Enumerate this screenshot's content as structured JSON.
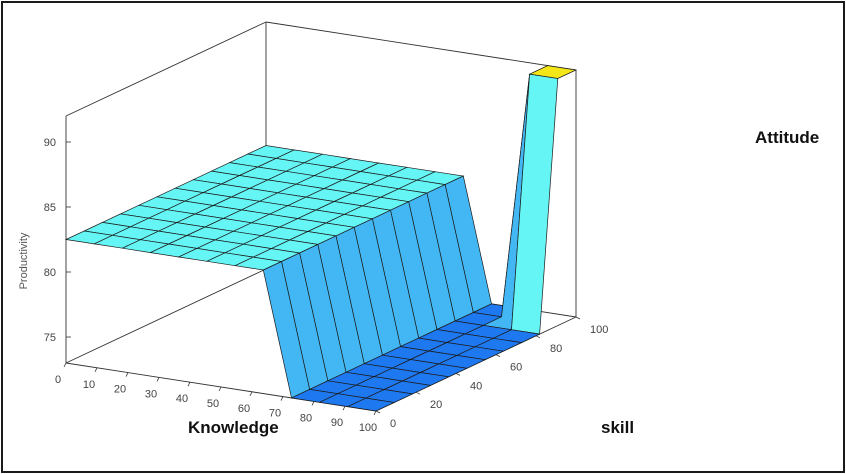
{
  "chart_data": {
    "type": "surface",
    "x_axis": {
      "label": "Knowledge",
      "range": [
        0,
        100
      ],
      "ticks": [
        0,
        10,
        20,
        30,
        40,
        50,
        60,
        70,
        80,
        90,
        100
      ]
    },
    "y_axis": {
      "label": "skill",
      "range": [
        0,
        100
      ],
      "ticks": [
        0,
        20,
        40,
        60,
        80,
        100
      ]
    },
    "z_axis": {
      "label": "Productivity",
      "range": [
        73,
        92
      ],
      "ticks": [
        75,
        80,
        85,
        90
      ]
    },
    "annotation": "Attitude",
    "grid": "off",
    "surface_description_levels": {
      "knowledge_le_70": 82.5,
      "knowledge_ge_80_skill_lt_80": 73,
      "knowledge_ge_80_skill_ge_90": 92
    },
    "colormap": {
      "low": "#1e78f0",
      "mid": "#66f5f5",
      "high": "#f5e617"
    },
    "z": [
      [
        82.5,
        82.5,
        82.5,
        82.5,
        82.5,
        82.5,
        82.5,
        82.5,
        82.5,
        82.5,
        82.5,
        82.5
      ],
      [
        82.5,
        82.5,
        82.5,
        82.5,
        82.5,
        82.5,
        82.5,
        82.5,
        82.5,
        82.5,
        82.5,
        82.5
      ],
      [
        82.5,
        82.5,
        82.5,
        82.5,
        82.5,
        82.5,
        82.5,
        82.5,
        82.5,
        82.5,
        82.5,
        82.5
      ],
      [
        82.5,
        82.5,
        82.5,
        82.5,
        82.5,
        82.5,
        82.5,
        82.5,
        82.5,
        82.5,
        82.5,
        82.5
      ],
      [
        82.5,
        82.5,
        82.5,
        82.5,
        82.5,
        82.5,
        82.5,
        82.5,
        82.5,
        82.5,
        82.5,
        82.5
      ],
      [
        82.5,
        82.5,
        82.5,
        82.5,
        82.5,
        82.5,
        82.5,
        82.5,
        82.5,
        82.5,
        82.5,
        82.5
      ],
      [
        82.5,
        82.5,
        82.5,
        82.5,
        82.5,
        82.5,
        82.5,
        82.5,
        82.5,
        82.5,
        82.5,
        82.5
      ],
      [
        82.5,
        82.5,
        82.5,
        82.5,
        82.5,
        82.5,
        82.5,
        82.5,
        82.5,
        82.5,
        82.5,
        82.5
      ],
      [
        73,
        73,
        73,
        73,
        73,
        73,
        73,
        73,
        73,
        73,
        73,
        73
      ],
      [
        73,
        73,
        73,
        73,
        73,
        73,
        73,
        73,
        73,
        73,
        73,
        73
      ],
      [
        73,
        73,
        73,
        73,
        73,
        73,
        73,
        73,
        73,
        73,
        92,
        92
      ],
      [
        73,
        73,
        73,
        73,
        73,
        73,
        73,
        73,
        73,
        73,
        92,
        92
      ]
    ]
  }
}
